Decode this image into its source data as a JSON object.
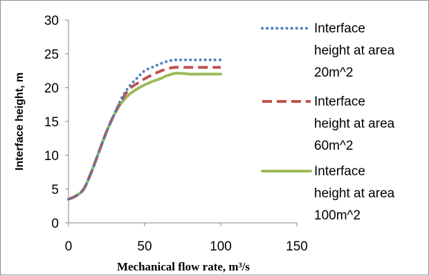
{
  "chart_data": {
    "type": "line",
    "xlabel": "Mechanical flow rate, m³/s",
    "ylabel": "Interface height, m",
    "xlim": [
      0,
      150
    ],
    "ylim": [
      0,
      30
    ],
    "x_ticks": [
      "0",
      "50",
      "100",
      "150"
    ],
    "y_ticks": [
      "0",
      "5",
      "10",
      "15",
      "20",
      "25",
      "30"
    ],
    "grid": false,
    "legend_position": "right",
    "series": [
      {
        "name_lines": [
          "Interface",
          "height at area",
          "20m^2"
        ],
        "color": "#4f81bd",
        "style": "dotted",
        "x": [
          0,
          5,
          10,
          15,
          20,
          25,
          30,
          35,
          40,
          45,
          50,
          55,
          60,
          65,
          70,
          75,
          80,
          85,
          90,
          95,
          100
        ],
        "y": [
          3.5,
          4.0,
          5.0,
          7.5,
          10.5,
          13.5,
          16.0,
          18.5,
          20.2,
          21.4,
          22.5,
          23.0,
          23.5,
          23.9,
          24.1,
          24.1,
          24.1,
          24.1,
          24.1,
          24.1,
          24.1
        ]
      },
      {
        "name_lines": [
          "Interface",
          "height at area",
          "60m^2"
        ],
        "color": "#c0504d",
        "style": "dashed",
        "x": [
          0,
          5,
          10,
          15,
          20,
          25,
          30,
          35,
          40,
          45,
          50,
          55,
          60,
          65,
          70,
          75,
          80,
          85,
          90,
          95,
          100
        ],
        "y": [
          3.5,
          4.0,
          5.0,
          7.5,
          10.5,
          13.5,
          16.0,
          18.2,
          19.8,
          20.6,
          21.3,
          21.9,
          22.4,
          22.8,
          23.0,
          23.0,
          23.0,
          23.0,
          23.0,
          23.0,
          23.0
        ]
      },
      {
        "name_lines": [
          "Interface",
          "height at  area",
          "100m^2"
        ],
        "color": "#9bbb59",
        "style": "solid",
        "x": [
          0,
          5,
          10,
          15,
          20,
          25,
          30,
          35,
          40,
          45,
          50,
          55,
          60,
          65,
          70,
          75,
          80,
          85,
          90,
          95,
          100
        ],
        "y": [
          3.5,
          4.0,
          5.0,
          7.5,
          10.5,
          13.5,
          16.0,
          17.8,
          19.0,
          19.8,
          20.4,
          20.9,
          21.3,
          21.8,
          22.1,
          22.1,
          22.0,
          22.0,
          22.0,
          22.0,
          22.0
        ]
      }
    ]
  }
}
